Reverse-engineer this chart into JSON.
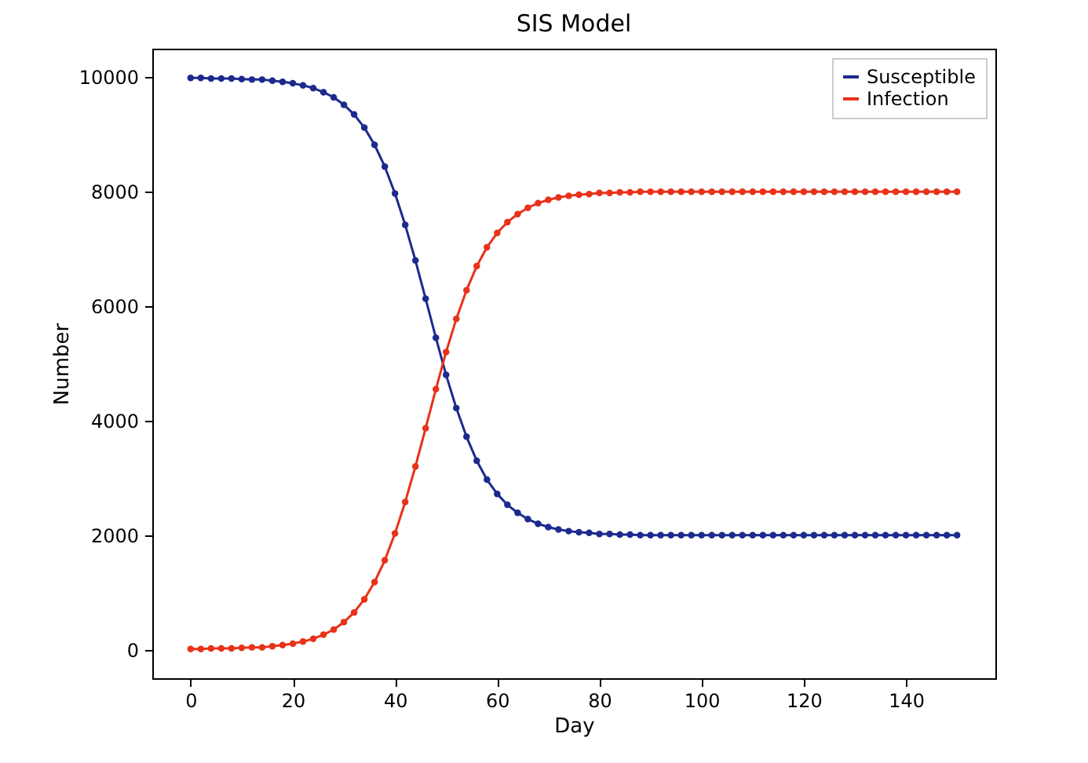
{
  "chart_data": {
    "type": "line",
    "title": "SIS Model",
    "xlabel": "Day",
    "ylabel": "Number",
    "x": [
      0,
      2,
      4,
      6,
      8,
      10,
      12,
      14,
      16,
      18,
      20,
      22,
      24,
      26,
      28,
      30,
      32,
      34,
      36,
      38,
      40,
      42,
      44,
      46,
      48,
      50,
      52,
      54,
      56,
      58,
      60,
      62,
      64,
      66,
      68,
      70,
      72,
      74,
      76,
      78,
      80,
      82,
      84,
      86,
      88,
      90,
      92,
      94,
      96,
      98,
      100,
      102,
      104,
      106,
      108,
      110,
      112,
      114,
      116,
      118,
      120,
      122,
      124,
      126,
      128,
      130,
      132,
      134,
      136,
      138,
      140,
      142,
      144,
      146,
      148,
      150
    ],
    "series": [
      {
        "name": "Susceptible",
        "color": "#1c2a8e",
        "values": [
          9990,
          9990,
          9980,
          9980,
          9980,
          9970,
          9960,
          9960,
          9940,
          9920,
          9895,
          9860,
          9810,
          9740,
          9650,
          9520,
          9350,
          9120,
          8820,
          8440,
          7970,
          7420,
          6800,
          6130,
          5450,
          4800,
          4220,
          3720,
          3300,
          2970,
          2720,
          2530,
          2390,
          2280,
          2200,
          2140,
          2100,
          2070,
          2050,
          2040,
          2020,
          2020,
          2010,
          2010,
          2000,
          2000,
          2000,
          2000,
          2000,
          2000,
          2000,
          2000,
          2000,
          2000,
          2000,
          2000,
          2000,
          2000,
          2000,
          2000,
          2000,
          2000,
          2000,
          2000,
          2000,
          2000,
          2000,
          2000,
          2000,
          2000,
          2000,
          2000,
          2000,
          2000,
          2000,
          2000
        ]
      },
      {
        "name": "Infection",
        "color": "#e8321a",
        "values": [
          10,
          10,
          20,
          20,
          20,
          30,
          40,
          40,
          60,
          80,
          105,
          140,
          190,
          260,
          350,
          480,
          650,
          880,
          1180,
          1560,
          2030,
          2580,
          3200,
          3870,
          4550,
          5200,
          5780,
          6280,
          6700,
          7030,
          7280,
          7470,
          7610,
          7720,
          7800,
          7860,
          7900,
          7930,
          7950,
          7960,
          7980,
          7980,
          7990,
          7990,
          8000,
          8000,
          8000,
          8000,
          8000,
          8000,
          8000,
          8000,
          8000,
          8000,
          8000,
          8000,
          8000,
          8000,
          8000,
          8000,
          8000,
          8000,
          8000,
          8000,
          8000,
          8000,
          8000,
          8000,
          8000,
          8000,
          8000,
          8000,
          8000,
          8000,
          8000,
          8000
        ]
      }
    ],
    "xlim": [
      -7.5,
      157.5
    ],
    "xticks": [
      0,
      20,
      40,
      60,
      80,
      100,
      120,
      140
    ],
    "ylim": [
      -500,
      10500
    ],
    "yticks": [
      0,
      2000,
      4000,
      6000,
      8000,
      10000
    ],
    "legend": "top right",
    "marker": "circle",
    "line_style": "solid"
  }
}
